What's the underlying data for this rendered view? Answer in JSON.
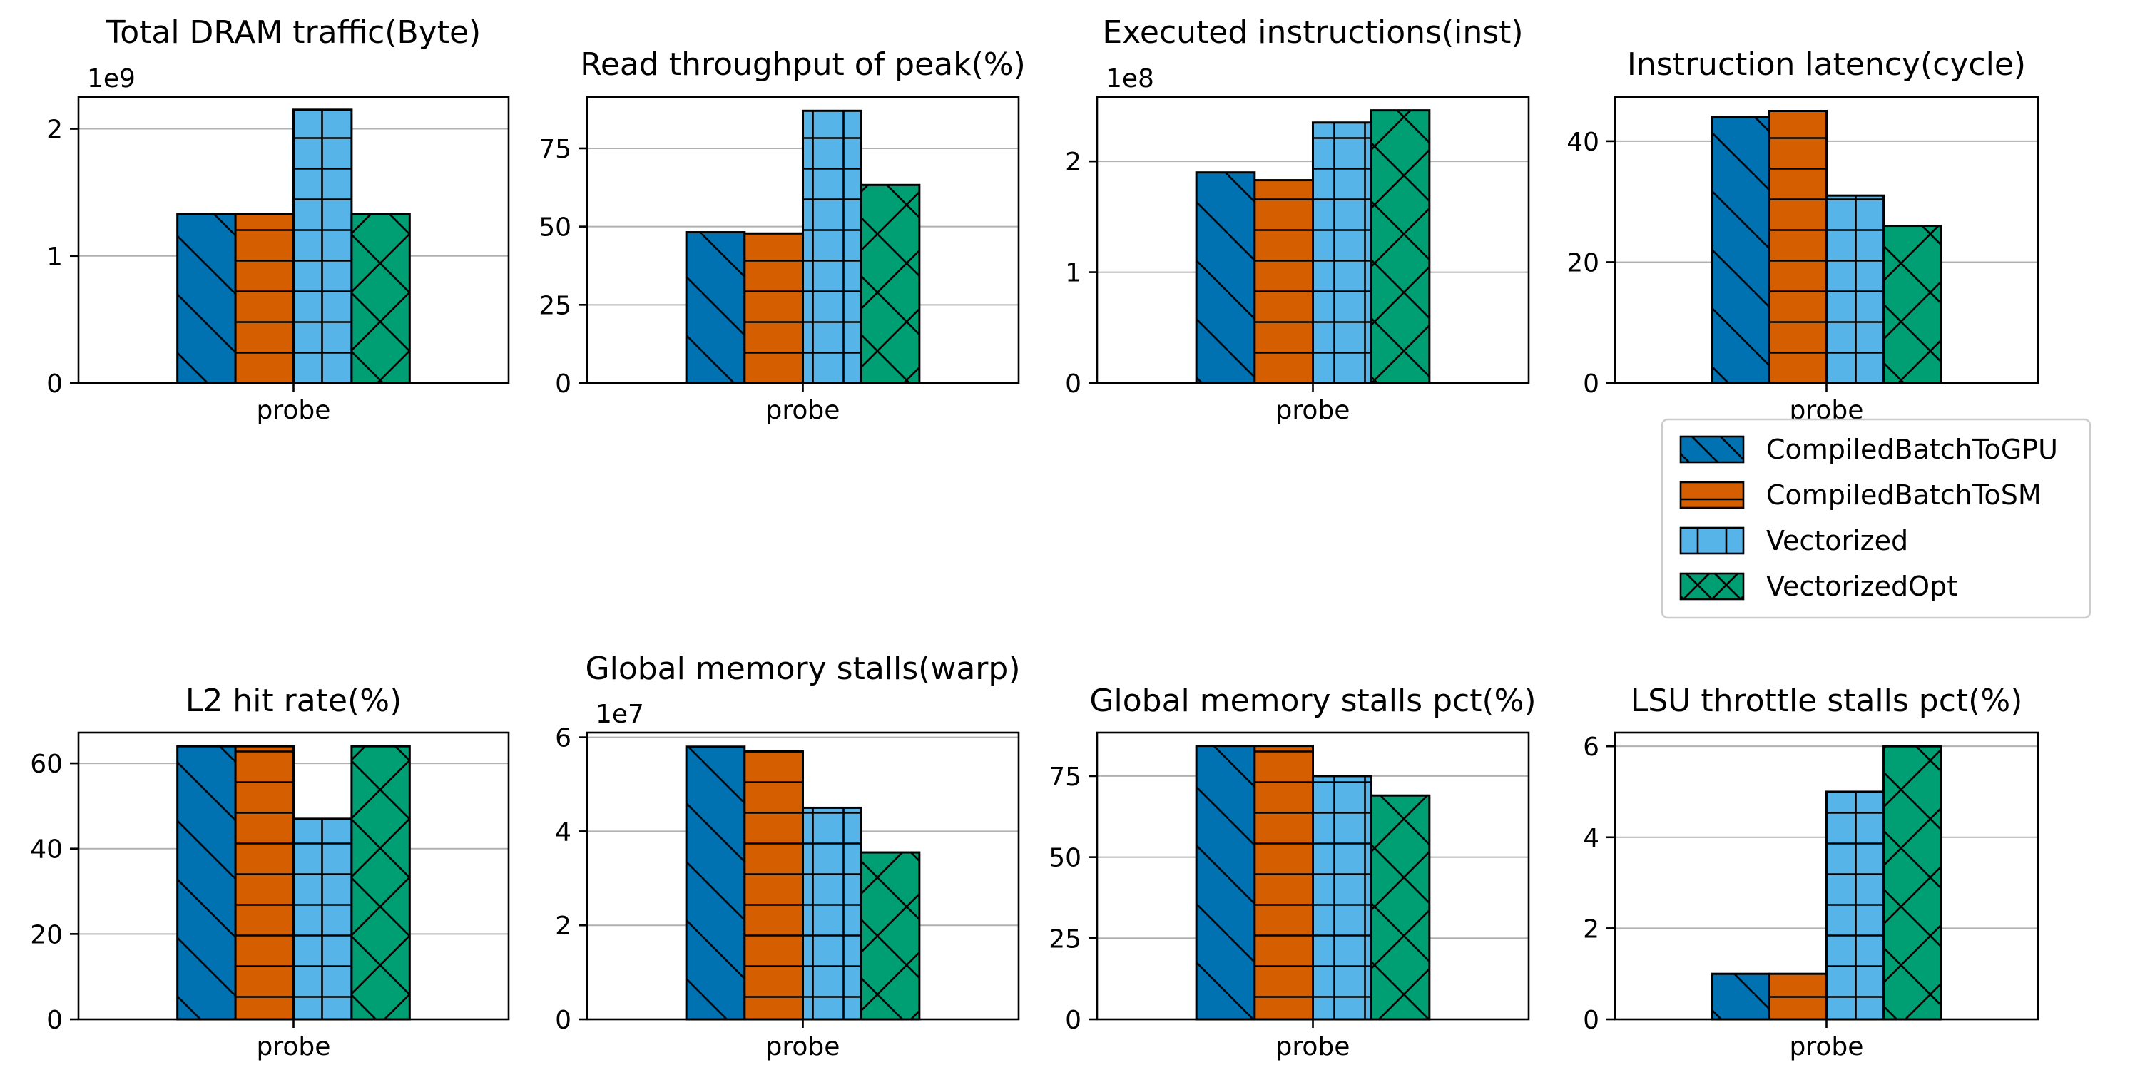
{
  "colors": {
    "CompiledBatchToGPU": "#0072b2",
    "CompiledBatchToSM": "#d55e00",
    "Vectorized": "#56b4e9",
    "VectorizedOpt": "#009e73"
  },
  "legend": {
    "placement": "right, between rows",
    "entries": [
      {
        "label": "CompiledBatchToGPU",
        "hatch": "backslash"
      },
      {
        "label": "CompiledBatchToSM",
        "hatch": "horizontal"
      },
      {
        "label": "Vectorized",
        "hatch": "plus"
      },
      {
        "label": "VectorizedOpt",
        "hatch": "cross"
      }
    ]
  },
  "chart_data": [
    {
      "type": "bar",
      "title": "Total DRAM traffic(Byte)",
      "categories": [
        "probe"
      ],
      "offset_label": "1e9",
      "ylim": [
        0,
        2.25
      ],
      "yticks": [
        0,
        1,
        2
      ],
      "grid": true,
      "series": [
        {
          "name": "CompiledBatchToGPU",
          "values": [
            1.33
          ]
        },
        {
          "name": "CompiledBatchToSM",
          "values": [
            1.33
          ]
        },
        {
          "name": "Vectorized",
          "values": [
            2.15
          ]
        },
        {
          "name": "VectorizedOpt",
          "values": [
            1.33
          ]
        }
      ]
    },
    {
      "type": "bar",
      "title": "Read throughput of peak(%)",
      "categories": [
        "probe"
      ],
      "offset_label": "",
      "ylim": [
        0,
        91.4
      ],
      "yticks": [
        0,
        25,
        50,
        75
      ],
      "grid": true,
      "series": [
        {
          "name": "CompiledBatchToGPU",
          "values": [
            48.2
          ]
        },
        {
          "name": "CompiledBatchToSM",
          "values": [
            47.8
          ]
        },
        {
          "name": "Vectorized",
          "values": [
            87
          ]
        },
        {
          "name": "VectorizedOpt",
          "values": [
            63.3
          ]
        }
      ]
    },
    {
      "type": "bar",
      "title": "Executed instructions(inst)",
      "categories": [
        "probe"
      ],
      "offset_label": "1e8",
      "ylim": [
        0,
        2.58
      ],
      "yticks": [
        0,
        1,
        2
      ],
      "grid": true,
      "series": [
        {
          "name": "CompiledBatchToGPU",
          "values": [
            1.9
          ]
        },
        {
          "name": "CompiledBatchToSM",
          "values": [
            1.83
          ]
        },
        {
          "name": "Vectorized",
          "values": [
            2.35
          ]
        },
        {
          "name": "VectorizedOpt",
          "values": [
            2.46
          ]
        }
      ]
    },
    {
      "type": "bar",
      "title": "Instruction latency(cycle)",
      "categories": [
        "probe"
      ],
      "offset_label": "",
      "ylim": [
        0,
        47.3
      ],
      "yticks": [
        0,
        20,
        40
      ],
      "grid": true,
      "series": [
        {
          "name": "CompiledBatchToGPU",
          "values": [
            44
          ]
        },
        {
          "name": "CompiledBatchToSM",
          "values": [
            45
          ]
        },
        {
          "name": "Vectorized",
          "values": [
            31
          ]
        },
        {
          "name": "VectorizedOpt",
          "values": [
            26
          ]
        }
      ]
    },
    {
      "type": "bar",
      "title": "L2 hit rate(%)",
      "categories": [
        "probe"
      ],
      "offset_label": "",
      "ylim": [
        0,
        67.2
      ],
      "yticks": [
        0,
        20,
        40,
        60
      ],
      "grid": true,
      "series": [
        {
          "name": "CompiledBatchToGPU",
          "values": [
            64
          ]
        },
        {
          "name": "CompiledBatchToSM",
          "values": [
            64
          ]
        },
        {
          "name": "Vectorized",
          "values": [
            47
          ]
        },
        {
          "name": "VectorizedOpt",
          "values": [
            64
          ]
        }
      ]
    },
    {
      "type": "bar",
      "title": "Global memory stalls(warp)",
      "categories": [
        "probe"
      ],
      "offset_label": "1e7",
      "ylim": [
        0,
        6.1
      ],
      "yticks": [
        0,
        2,
        4,
        6
      ],
      "grid": true,
      "series": [
        {
          "name": "CompiledBatchToGPU",
          "values": [
            5.8
          ]
        },
        {
          "name": "CompiledBatchToSM",
          "values": [
            5.7
          ]
        },
        {
          "name": "Vectorized",
          "values": [
            4.5
          ]
        },
        {
          "name": "VectorizedOpt",
          "values": [
            3.55
          ]
        }
      ]
    },
    {
      "type": "bar",
      "title": "Global memory stalls pct(%)",
      "categories": [
        "probe"
      ],
      "offset_label": "",
      "ylim": [
        0,
        88.4
      ],
      "yticks": [
        0,
        25,
        50,
        75
      ],
      "grid": true,
      "series": [
        {
          "name": "CompiledBatchToGPU",
          "values": [
            84.3
          ]
        },
        {
          "name": "CompiledBatchToSM",
          "values": [
            84.3
          ]
        },
        {
          "name": "Vectorized",
          "values": [
            75
          ]
        },
        {
          "name": "VectorizedOpt",
          "values": [
            69
          ]
        }
      ]
    },
    {
      "type": "bar",
      "title": "LSU throttle stalls pct(%)",
      "categories": [
        "probe"
      ],
      "offset_label": "",
      "ylim": [
        0,
        6.3
      ],
      "yticks": [
        0,
        2,
        4,
        6
      ],
      "grid": true,
      "series": [
        {
          "name": "CompiledBatchToGPU",
          "values": [
            1
          ]
        },
        {
          "name": "CompiledBatchToSM",
          "values": [
            1
          ]
        },
        {
          "name": "Vectorized",
          "values": [
            5
          ]
        },
        {
          "name": "VectorizedOpt",
          "values": [
            6
          ]
        }
      ]
    }
  ]
}
